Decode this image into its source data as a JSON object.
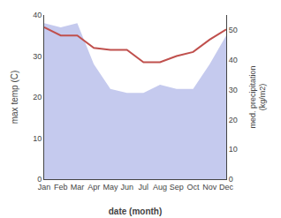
{
  "chart_data": {
    "type": "line",
    "categories": [
      "Jan",
      "Feb",
      "Mar",
      "Apr",
      "May",
      "Jun",
      "Jul",
      "Aug",
      "Sep",
      "Oct",
      "Nov",
      "Dec"
    ],
    "series": [
      {
        "type": "area",
        "color": "#c5caee",
        "values": [
          38,
          37,
          38,
          28,
          22,
          21,
          21,
          23,
          22,
          22,
          28,
          35
        ]
      },
      {
        "type": "line",
        "color": "#c0504d",
        "values": [
          37,
          35,
          35,
          32,
          31.5,
          31.5,
          28.5,
          28.5,
          30,
          31,
          34,
          36.5
        ]
      }
    ],
    "xlabel": "date (month)",
    "ylabel": "max temp (C)",
    "y2label": "med. precipitation\n(kg/m2)",
    "ylim": [
      0,
      40
    ],
    "yticks": [
      0,
      10,
      20,
      30,
      40
    ],
    "y2lim": [
      0,
      55
    ],
    "y2ticks": [
      0,
      10,
      20,
      30,
      40,
      50
    ],
    "grid": false
  }
}
